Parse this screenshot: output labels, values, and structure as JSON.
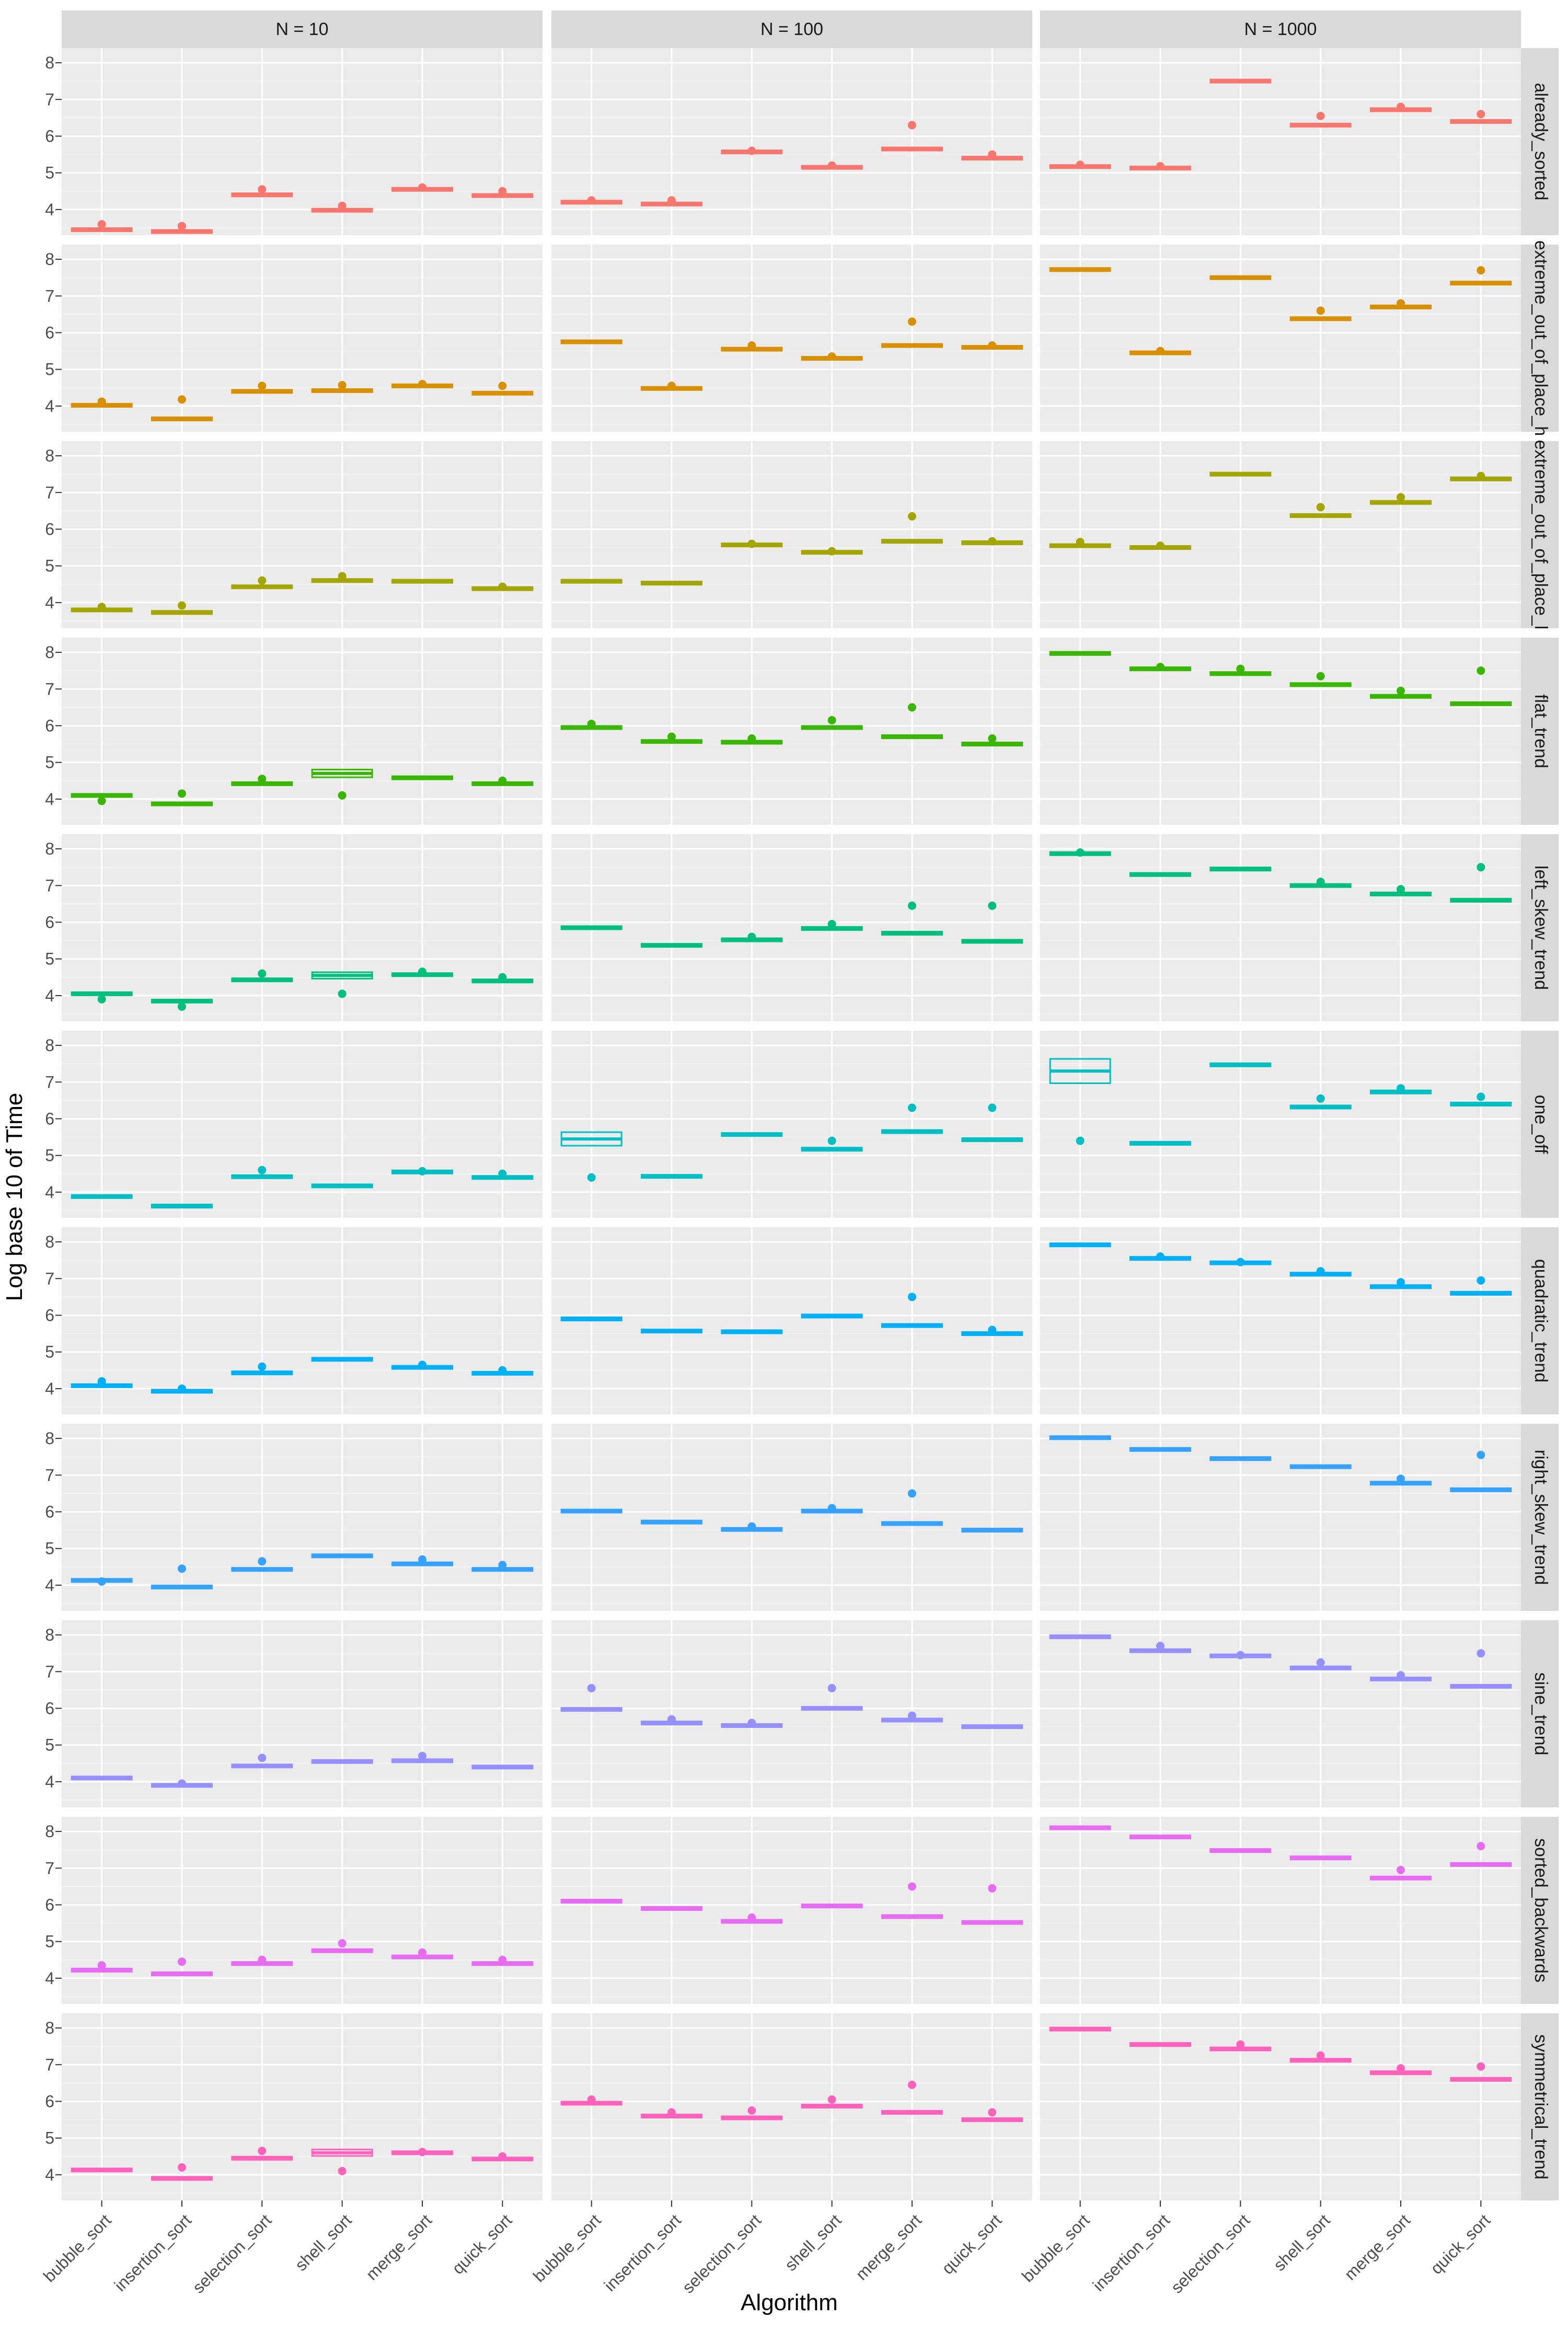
{
  "chart_data": {
    "type": "boxplot",
    "xlabel": "Algorithm",
    "ylabel": "Log base 10 of Time",
    "ylim": [
      3.3,
      8.4
    ],
    "yticks": [
      4,
      5,
      6,
      7,
      8
    ],
    "grid": true,
    "legend": "none",
    "algorithms": [
      "bubble_sort",
      "insertion_sort",
      "selection_sort",
      "shell_sort",
      "merge_sort",
      "quick_sort"
    ],
    "columns": [
      "N = 10",
      "N = 100",
      "N = 1000"
    ],
    "rows": [
      {
        "label": "already_sorted",
        "color": "#F8766D",
        "data": [
          [
            [
              3.45,
              3.6
            ],
            [
              3.4,
              3.55
            ],
            [
              4.4,
              4.55
            ],
            [
              3.98,
              4.1
            ],
            [
              4.55,
              4.6
            ],
            [
              4.38,
              4.5
            ]
          ],
          [
            [
              4.2,
              4.25
            ],
            [
              4.15,
              4.25
            ],
            [
              5.57,
              5.6
            ],
            [
              5.15,
              5.2
            ],
            [
              5.65,
              6.3
            ],
            [
              5.4,
              5.5
            ]
          ],
          [
            [
              5.17,
              5.22
            ],
            [
              5.13,
              5.18
            ],
            [
              7.5,
              7.5
            ],
            [
              6.3,
              6.55
            ],
            [
              6.72,
              6.8
            ],
            [
              6.4,
              6.6
            ]
          ]
        ]
      },
      {
        "label": "extreme_out_of_place_h",
        "color": "#D89000",
        "data": [
          [
            [
              4.02,
              4.12
            ],
            [
              3.65,
              4.18
            ],
            [
              4.4,
              4.55
            ],
            [
              4.42,
              4.57
            ],
            [
              4.55,
              4.6
            ],
            [
              4.35,
              4.55
            ]
          ],
          [
            [
              5.75,
              5.75
            ],
            [
              4.48,
              4.55
            ],
            [
              5.55,
              5.65
            ],
            [
              5.3,
              5.35
            ],
            [
              5.65,
              6.3
            ],
            [
              5.6,
              5.65
            ]
          ],
          [
            [
              7.72,
              7.72
            ],
            [
              5.45,
              5.5
            ],
            [
              7.5,
              7.5
            ],
            [
              6.38,
              6.6
            ],
            [
              6.7,
              6.8
            ],
            [
              7.35,
              7.7
            ]
          ]
        ]
      },
      {
        "label": "extreme_out_of_place_l",
        "color": "#A3A500",
        "data": [
          [
            [
              3.8,
              3.88
            ],
            [
              3.73,
              3.92
            ],
            [
              4.43,
              4.6
            ],
            [
              4.6,
              4.72
            ],
            [
              4.58,
              4.6
            ],
            [
              4.38,
              4.43
            ]
          ],
          [
            [
              4.58,
              4.6
            ],
            [
              4.53,
              4.55
            ],
            [
              5.57,
              5.6
            ],
            [
              5.37,
              5.4
            ],
            [
              5.67,
              6.35
            ],
            [
              5.63,
              5.67
            ]
          ],
          [
            [
              5.55,
              5.65
            ],
            [
              5.5,
              5.55
            ],
            [
              7.5,
              7.5
            ],
            [
              6.37,
              6.6
            ],
            [
              6.73,
              6.87
            ],
            [
              7.37,
              7.45
            ]
          ]
        ]
      },
      {
        "label": "flat_trend",
        "color": "#39B600",
        "data": [
          [
            [
              4.1,
              3.95
            ],
            [
              3.87,
              4.15
            ],
            [
              4.42,
              4.55
            ],
            [
              4.7,
              4.1
            ],
            [
              4.58,
              4.6
            ],
            [
              4.42,
              4.5
            ]
          ],
          [
            [
              5.95,
              6.05
            ],
            [
              5.57,
              5.7
            ],
            [
              5.55,
              5.65
            ],
            [
              5.95,
              6.15
            ],
            [
              5.7,
              6.5
            ],
            [
              5.5,
              5.65
            ]
          ],
          [
            [
              7.97,
              7.97
            ],
            [
              7.55,
              7.6
            ],
            [
              7.42,
              7.55
            ],
            [
              7.12,
              7.35
            ],
            [
              6.8,
              6.95
            ],
            [
              6.6,
              7.5
            ]
          ]
        ]
      },
      {
        "label": "left_skew_trend",
        "color": "#00BF7D",
        "data": [
          [
            [
              4.05,
              3.9
            ],
            [
              3.85,
              3.7
            ],
            [
              4.43,
              4.6
            ],
            [
              4.55,
              4.05
            ],
            [
              4.57,
              4.65
            ],
            [
              4.4,
              4.5
            ]
          ],
          [
            [
              5.85,
              5.85
            ],
            [
              5.37,
              5.37
            ],
            [
              5.52,
              5.6
            ],
            [
              5.83,
              5.95
            ],
            [
              5.7,
              6.45
            ],
            [
              5.48,
              6.45
            ]
          ],
          [
            [
              7.87,
              7.9
            ],
            [
              7.3,
              7.3
            ],
            [
              7.45,
              7.45
            ],
            [
              7.0,
              7.1
            ],
            [
              6.77,
              6.9
            ],
            [
              6.6,
              7.5
            ]
          ]
        ]
      },
      {
        "label": "one_off",
        "color": "#00BFC4",
        "data": [
          [
            [
              3.88,
              3.88
            ],
            [
              3.62,
              3.62
            ],
            [
              4.42,
              4.6
            ],
            [
              4.17,
              4.17
            ],
            [
              4.55,
              4.57
            ],
            [
              4.4,
              4.5
            ]
          ],
          [
            [
              5.45,
              4.4
            ],
            [
              4.43,
              4.43
            ],
            [
              5.57,
              5.57
            ],
            [
              5.17,
              5.4
            ],
            [
              5.65,
              6.3
            ],
            [
              5.43,
              6.3
            ]
          ],
          [
            [
              7.3,
              5.4
            ],
            [
              5.33,
              5.33
            ],
            [
              7.47,
              7.47
            ],
            [
              6.32,
              6.55
            ],
            [
              6.73,
              6.83
            ],
            [
              6.4,
              6.6
            ]
          ]
        ]
      },
      {
        "label": "quadratic_trend",
        "color": "#00B0F6",
        "data": [
          [
            [
              4.08,
              4.2
            ],
            [
              3.93,
              4.0
            ],
            [
              4.43,
              4.6
            ],
            [
              4.8,
              4.8
            ],
            [
              4.58,
              4.65
            ],
            [
              4.42,
              4.5
            ]
          ],
          [
            [
              5.9,
              5.9
            ],
            [
              5.57,
              5.57
            ],
            [
              5.55,
              5.55
            ],
            [
              5.98,
              5.98
            ],
            [
              5.72,
              6.5
            ],
            [
              5.5,
              5.6
            ]
          ],
          [
            [
              7.92,
              7.92
            ],
            [
              7.55,
              7.6
            ],
            [
              7.43,
              7.45
            ],
            [
              7.12,
              7.2
            ],
            [
              6.78,
              6.9
            ],
            [
              6.6,
              6.95
            ]
          ]
        ]
      },
      {
        "label": "right_skew_trend",
        "color": "#35A2FF",
        "data": [
          [
            [
              4.13,
              4.1
            ],
            [
              3.95,
              4.45
            ],
            [
              4.43,
              4.65
            ],
            [
              4.8,
              4.8
            ],
            [
              4.58,
              4.7
            ],
            [
              4.43,
              4.55
            ]
          ],
          [
            [
              6.02,
              6.02
            ],
            [
              5.72,
              5.72
            ],
            [
              5.52,
              5.6
            ],
            [
              6.02,
              6.1
            ],
            [
              5.68,
              6.5
            ],
            [
              5.5,
              5.5
            ]
          ],
          [
            [
              8.02,
              8.02
            ],
            [
              7.7,
              7.7
            ],
            [
              7.45,
              7.45
            ],
            [
              7.23,
              7.23
            ],
            [
              6.78,
              6.9
            ],
            [
              6.6,
              7.55
            ]
          ]
        ]
      },
      {
        "label": "sine_trend",
        "color": "#9590FF",
        "data": [
          [
            [
              4.1,
              4.1
            ],
            [
              3.9,
              3.95
            ],
            [
              4.43,
              4.65
            ],
            [
              4.55,
              4.55
            ],
            [
              4.57,
              4.7
            ],
            [
              4.4,
              4.4
            ]
          ],
          [
            [
              5.97,
              6.55
            ],
            [
              5.6,
              5.7
            ],
            [
              5.53,
              5.6
            ],
            [
              6.0,
              6.55
            ],
            [
              5.68,
              5.8
            ],
            [
              5.5,
              5.5
            ]
          ],
          [
            [
              7.95,
              7.95
            ],
            [
              7.57,
              7.7
            ],
            [
              7.43,
              7.45
            ],
            [
              7.1,
              7.25
            ],
            [
              6.8,
              6.9
            ],
            [
              6.6,
              7.5
            ]
          ]
        ]
      },
      {
        "label": "sorted_backwards",
        "color": "#E76BF3",
        "data": [
          [
            [
              4.22,
              4.35
            ],
            [
              4.12,
              4.45
            ],
            [
              4.4,
              4.5
            ],
            [
              4.75,
              4.95
            ],
            [
              4.58,
              4.7
            ],
            [
              4.4,
              4.5
            ]
          ],
          [
            [
              6.1,
              6.1
            ],
            [
              5.9,
              5.9
            ],
            [
              5.55,
              5.65
            ],
            [
              5.97,
              5.97
            ],
            [
              5.68,
              6.5
            ],
            [
              5.52,
              6.45
            ]
          ],
          [
            [
              8.1,
              8.1
            ],
            [
              7.85,
              7.85
            ],
            [
              7.48,
              7.48
            ],
            [
              7.28,
              7.28
            ],
            [
              6.73,
              6.95
            ],
            [
              7.1,
              7.6
            ]
          ]
        ]
      },
      {
        "label": "symmetrical_trend",
        "color": "#FF62BC",
        "data": [
          [
            [
              4.13,
              4.13
            ],
            [
              3.9,
              4.2
            ],
            [
              4.45,
              4.65
            ],
            [
              4.6,
              4.1
            ],
            [
              4.6,
              4.62
            ],
            [
              4.43,
              4.5
            ]
          ],
          [
            [
              5.95,
              6.05
            ],
            [
              5.6,
              5.7
            ],
            [
              5.55,
              5.75
            ],
            [
              5.87,
              6.05
            ],
            [
              5.7,
              6.45
            ],
            [
              5.5,
              5.7
            ]
          ],
          [
            [
              7.97,
              7.97
            ],
            [
              7.55,
              7.55
            ],
            [
              7.43,
              7.55
            ],
            [
              7.12,
              7.25
            ],
            [
              6.78,
              6.9
            ],
            [
              6.6,
              6.95
            ]
          ]
        ]
      }
    ],
    "series_value_format": "each cell: [median, max outlier or spread value] in log10 time units"
  }
}
